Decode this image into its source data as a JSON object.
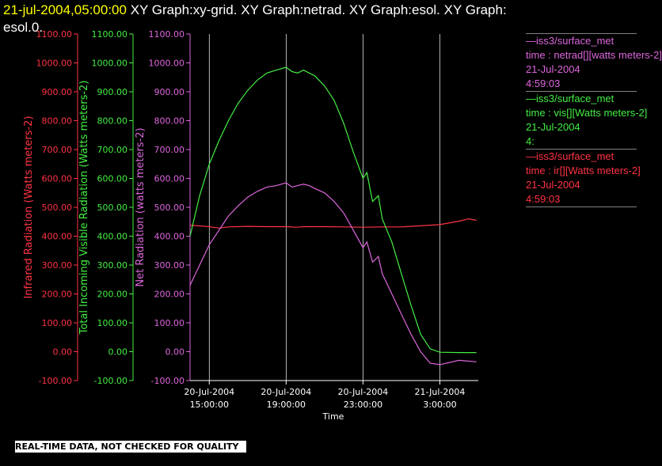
{
  "header": {
    "timestamp": "21-jul-2004,05:00:00",
    "graphs_text": " XY Graph:xy-grid.  XY Graph:netrad.  XY Graph:esol.  XY Graph:",
    "graphs_text_2": "esol.0."
  },
  "notice": "REAL-TIME DATA, NOT CHECKED FOR QUALITY",
  "colors": {
    "infrared": "#ff3344",
    "visible": "#44ee44",
    "net": "#dd66dd",
    "grid": "#ffffff",
    "background": "#000000"
  },
  "legend": [
    {
      "source": "—iss3/surface_met",
      "variable": "time : netrad[][watts meters-2]",
      "date": "21-Jul-2004",
      "time": "4:59:03",
      "color": "#dd66dd"
    },
    {
      "source": "—iss3/surface_met",
      "variable": "time : vis[][Watts meters-2]",
      "date": "21-Jul-2004",
      "time": "4:",
      "color": "#44ee44"
    },
    {
      "source": "—iss3/surface_met",
      "variable": "time : ir[][Watts meters-2]",
      "date": "21-Jul-2004",
      "time": "4:59:03",
      "color": "#ff3344"
    }
  ],
  "chart_data": {
    "type": "line",
    "xlabel": "Time",
    "x_ticks": [
      {
        "hours": 15,
        "line1": "20-Jul-2004",
        "line2": "15:00:00"
      },
      {
        "hours": 19,
        "line1": "20-Jul-2004",
        "line2": "19:00:00"
      },
      {
        "hours": 23,
        "line1": "20-Jul-2004",
        "line2": "23:00:00"
      },
      {
        "hours": 27,
        "line1": "21-Jul-2004",
        "line2": "3:00:00"
      }
    ],
    "x_range_hours": [
      14,
      29
    ],
    "y_ticks": [
      "-100.00",
      "0.00",
      "100.00",
      "200.00",
      "300.00",
      "400.00",
      "500.00",
      "600.00",
      "700.00",
      "800.00",
      "900.00",
      "1000.00",
      "1100.00"
    ],
    "y_axes": [
      {
        "label": "Infrared Radiation (Watts meters-2)",
        "ylim": [
          -100,
          1100
        ],
        "color": "#ff3344"
      },
      {
        "label": "Total Incoming Visible Radiation (Watts meters-2)",
        "ylim": [
          -100,
          1100
        ],
        "color": "#44ee44"
      },
      {
        "label": "Net Radiation (watts meters-2)",
        "ylim": [
          -100,
          1100
        ],
        "color": "#dd66dd"
      }
    ],
    "grid_vertical": true,
    "series": [
      {
        "key": "ir",
        "color": "#ff3344",
        "x": [
          14,
          15,
          15.5,
          16,
          17,
          18,
          19,
          19.5,
          20,
          21,
          22,
          23,
          24,
          25,
          26,
          27,
          28,
          28.5,
          28.9
        ],
        "y": [
          438,
          433,
          428,
          432,
          434,
          433,
          433,
          431,
          433,
          433,
          432,
          431,
          432,
          432,
          436,
          440,
          452,
          460,
          455
        ]
      },
      {
        "key": "vis",
        "color": "#44ee44",
        "x": [
          14,
          14.5,
          15,
          15.5,
          16,
          16.5,
          17,
          17.5,
          18,
          18.5,
          19,
          19.3,
          19.6,
          19.9,
          20.2,
          20.5,
          21,
          21.5,
          22,
          22.5,
          23,
          23.2,
          23.5,
          23.8,
          24,
          24.5,
          25,
          25.5,
          26,
          26.5,
          27,
          28,
          28.9
        ],
        "y": [
          400,
          540,
          650,
          730,
          800,
          860,
          905,
          940,
          965,
          975,
          985,
          970,
          965,
          975,
          965,
          955,
          920,
          870,
          790,
          690,
          600,
          620,
          520,
          540,
          460,
          380,
          270,
          160,
          60,
          10,
          -2,
          -3,
          -3
        ]
      },
      {
        "key": "net",
        "color": "#dd66dd",
        "x": [
          14,
          14.5,
          15,
          15.5,
          16,
          16.5,
          17,
          17.5,
          18,
          18.5,
          19,
          19.3,
          19.6,
          19.9,
          20.2,
          20.5,
          21,
          21.5,
          22,
          22.5,
          23,
          23.2,
          23.5,
          23.8,
          24,
          24.5,
          25,
          25.5,
          26,
          26.5,
          27,
          28,
          28.9
        ],
        "y": [
          230,
          300,
          370,
          420,
          470,
          505,
          535,
          555,
          570,
          575,
          585,
          570,
          575,
          580,
          575,
          565,
          550,
          520,
          480,
          420,
          360,
          380,
          310,
          330,
          270,
          200,
          130,
          60,
          0,
          -40,
          -45,
          -30,
          -35
        ]
      }
    ]
  }
}
